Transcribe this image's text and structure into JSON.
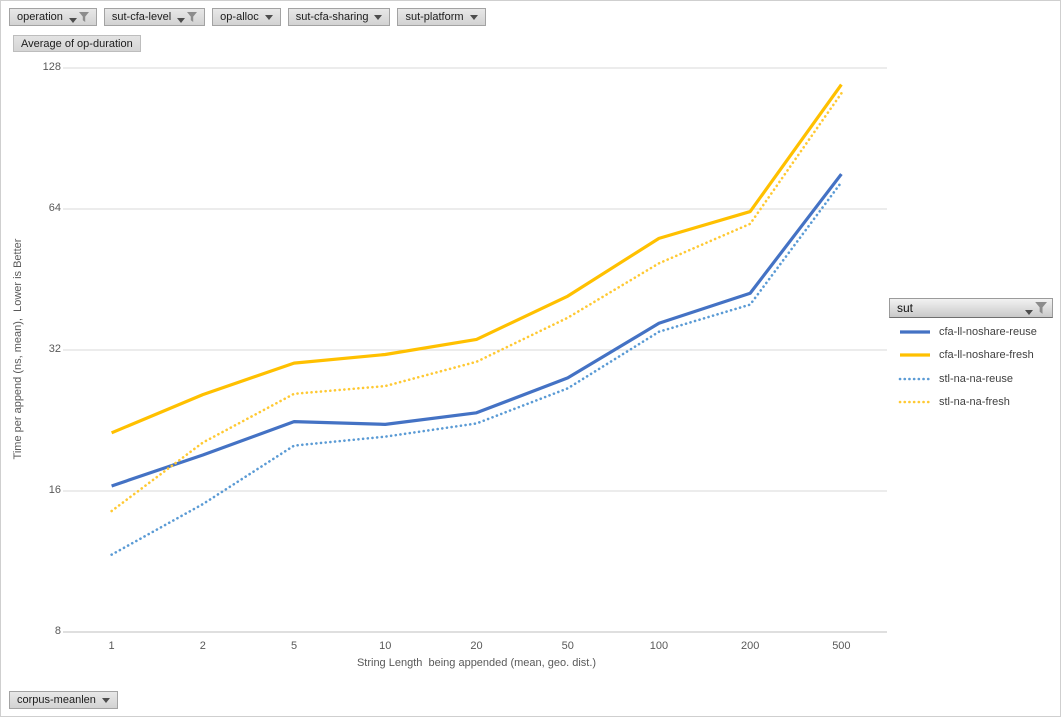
{
  "filters": {
    "top": [
      {
        "label": "operation",
        "icon": "filter-funnel"
      },
      {
        "label": "sut-cfa-level",
        "icon": "filter-funnel"
      },
      {
        "label": "op-alloc",
        "icon": "dropdown-arrow"
      },
      {
        "label": "sut-cfa-sharing",
        "icon": "dropdown-arrow"
      },
      {
        "label": "sut-platform",
        "icon": "dropdown-arrow"
      }
    ],
    "values_button_label": "Average of op-duration",
    "bottom": [
      {
        "label": "corpus-meanlen",
        "icon": "dropdown-arrow"
      }
    ]
  },
  "legend": {
    "field_label": "sut",
    "field_icon": "filter-funnel",
    "position": "right"
  },
  "chart_data": {
    "type": "line",
    "title": "Average of op-duration",
    "xlabel": "String Length  being appended (mean, geo. dist.)",
    "ylabel": "Time per append (ns, mean),  Lower is Better",
    "x_scale": "categorical (log-spaced values)",
    "y_scale": "log2",
    "grid": "horizontal",
    "ylim": [
      8,
      128
    ],
    "y_ticks": [
      128,
      64,
      32,
      16,
      8
    ],
    "categories": [
      "1",
      "2",
      "5",
      "10",
      "20",
      "50",
      "100",
      "200",
      "500"
    ],
    "series": [
      {
        "name": "cfa-ll-noshare-reuse",
        "color": "#4472C4",
        "dash": "solid",
        "values": [
          16.4,
          19.1,
          22.5,
          22.2,
          23.5,
          27.9,
          36.5,
          42.3,
          76
        ]
      },
      {
        "name": "cfa-ll-noshare-fresh",
        "color": "#FFC000",
        "dash": "solid",
        "values": [
          21.3,
          25.7,
          30.0,
          31.3,
          33.7,
          41.7,
          55.4,
          63.2,
          118
        ]
      },
      {
        "name": "stl-na-na-reuse",
        "color": "#5B9BD5",
        "dash": "dotted",
        "values": [
          11.7,
          15.0,
          20.0,
          20.9,
          22.3,
          26.5,
          35.0,
          40.0,
          73
        ]
      },
      {
        "name": "stl-na-na-fresh",
        "color": "#FFC933",
        "dash": "dotted",
        "values": [
          14.5,
          20.3,
          25.8,
          26.8,
          30.2,
          37.5,
          49.0,
          59.5,
          113
        ]
      }
    ],
    "colors": {
      "gridline": "#D9D9D9",
      "axis_line": "#BFBFBF",
      "tick_text": "#595959"
    }
  }
}
